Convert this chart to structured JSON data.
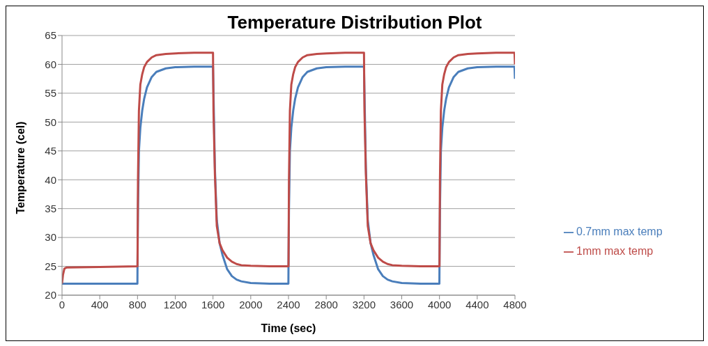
{
  "chart_data": {
    "type": "line",
    "title": "Temperature Distribution Plot",
    "xlabel": "Time (sec)",
    "ylabel": "Temperature (cel)",
    "x": [
      0,
      10,
      25,
      50,
      400,
      799,
      800,
      805,
      815,
      830,
      850,
      870,
      900,
      950,
      1000,
      1100,
      1200,
      1400,
      1599,
      1600,
      1605,
      1620,
      1640,
      1670,
      1700,
      1750,
      1800,
      1850,
      1900,
      2000,
      2200,
      2399,
      2400,
      2405,
      2415,
      2430,
      2450,
      2470,
      2500,
      2550,
      2600,
      2700,
      2800,
      3000,
      3199,
      3200,
      3205,
      3220,
      3240,
      3270,
      3300,
      3350,
      3400,
      3450,
      3500,
      3600,
      3800,
      3999,
      4000,
      4005,
      4015,
      4030,
      4050,
      4070,
      4100,
      4150,
      4200,
      4300,
      4400,
      4600,
      4795,
      4800
    ],
    "series": [
      {
        "name": "0.7mm max temp",
        "color": "#4a7ebb",
        "values": [
          22,
          22,
          22,
          22,
          22,
          22,
          25,
          35,
          45,
          49,
          52,
          54,
          56,
          57.8,
          58.7,
          59.3,
          59.5,
          59.6,
          59.6,
          59.6,
          null,
          42,
          33,
          29,
          27,
          24.5,
          23.3,
          22.7,
          22.4,
          22.1,
          22,
          22,
          25,
          35,
          45,
          49,
          52,
          54,
          56,
          57.8,
          58.7,
          59.3,
          59.5,
          59.6,
          59.6,
          59.6,
          null,
          42,
          33,
          29,
          27,
          24.5,
          23.3,
          22.7,
          22.4,
          22.1,
          22,
          22,
          25,
          35,
          45,
          49,
          52,
          54,
          56,
          57.8,
          58.7,
          59.3,
          59.5,
          59.6,
          59.6,
          57.5
        ]
      },
      {
        "name": "1mm max temp",
        "color": "#be4b48",
        "values": [
          22,
          23.5,
          24.6,
          24.8,
          24.9,
          25,
          25,
          40,
          52,
          56.5,
          58.3,
          59.5,
          60.4,
          61.2,
          61.6,
          61.8,
          61.9,
          62,
          62,
          62,
          52,
          41,
          32,
          29,
          27.8,
          26.5,
          25.8,
          25.4,
          25.2,
          25.1,
          25,
          25,
          25,
          40,
          52,
          56.5,
          58.3,
          59.5,
          60.4,
          61.2,
          61.6,
          61.8,
          61.9,
          62,
          62,
          62,
          52,
          41,
          32,
          29,
          27.8,
          26.5,
          25.8,
          25.4,
          25.2,
          25.1,
          25,
          25,
          25,
          40,
          52,
          56.5,
          58.3,
          59.5,
          60.4,
          61.2,
          61.6,
          61.8,
          61.9,
          62,
          62,
          60
        ]
      }
    ],
    "xlim": [
      0,
      4800
    ],
    "xticks": [
      0,
      400,
      800,
      1200,
      1600,
      2000,
      2400,
      2800,
      3200,
      3600,
      4000,
      4400,
      4800
    ],
    "ylim": [
      20,
      65
    ],
    "yticks": [
      20,
      25,
      30,
      35,
      40,
      45,
      50,
      55,
      60,
      65
    ],
    "grid": "y",
    "legend": "right",
    "marker": "none",
    "line_style": "solid"
  }
}
